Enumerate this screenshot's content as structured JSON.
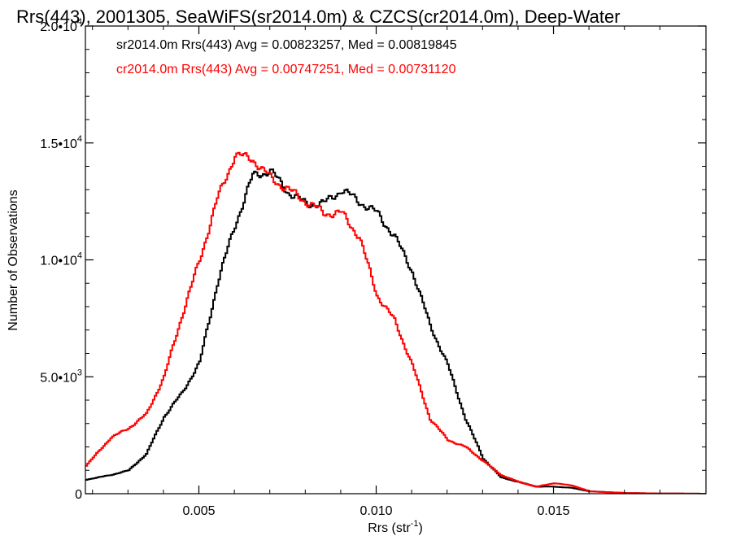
{
  "chart_data": {
    "type": "line",
    "step": true,
    "title": "Rrs(443), 2001305, SeaWiFS(sr2014.0m) & CZCS(cr2014.0m), Deep-Water",
    "xlabel": "Rrs (str",
    "xlabel_sup": "-1",
    "xlabel_end": ")",
    "ylabel": "Number of Observations",
    "xlim": [
      0.0018,
      0.0193
    ],
    "ylim": [
      0,
      20000
    ],
    "x_ticks": [
      {
        "value": 0.005,
        "label": "0.005"
      },
      {
        "value": 0.01,
        "label": "0.010"
      },
      {
        "value": 0.015,
        "label": "0.015"
      }
    ],
    "y_ticks": [
      {
        "value": 0,
        "mant": "0",
        "exp": ""
      },
      {
        "value": 5000,
        "mant": "5.0•10",
        "exp": "3"
      },
      {
        "value": 10000,
        "mant": "1.0•10",
        "exp": "4"
      },
      {
        "value": 15000,
        "mant": "1.5•10",
        "exp": "4"
      },
      {
        "value": 20000,
        "mant": "2.0•10",
        "exp": "4"
      }
    ],
    "grid": false,
    "legend_position": "top-left",
    "series": [
      {
        "name": "sr2014.0m Rrs(443) Avg = 0.00823257, Med = 0.00819845",
        "color": "#000000",
        "points": [
          [
            0.0018,
            600
          ],
          [
            0.0025,
            800
          ],
          [
            0.003,
            1000
          ],
          [
            0.0035,
            1700
          ],
          [
            0.004,
            3300
          ],
          [
            0.0045,
            4300
          ],
          [
            0.005,
            5600
          ],
          [
            0.0055,
            9000
          ],
          [
            0.006,
            11500
          ],
          [
            0.0065,
            13600
          ],
          [
            0.007,
            13800
          ],
          [
            0.0075,
            12900
          ],
          [
            0.008,
            12400
          ],
          [
            0.0085,
            12400
          ],
          [
            0.009,
            13000
          ],
          [
            0.0095,
            12500
          ],
          [
            0.01,
            12000
          ],
          [
            0.0105,
            11000
          ],
          [
            0.011,
            9500
          ],
          [
            0.0115,
            7200
          ],
          [
            0.012,
            5500
          ],
          [
            0.0125,
            3200
          ],
          [
            0.013,
            1500
          ],
          [
            0.0135,
            700
          ],
          [
            0.014,
            500
          ],
          [
            0.0145,
            300
          ],
          [
            0.015,
            300
          ],
          [
            0.0155,
            250
          ],
          [
            0.016,
            100
          ],
          [
            0.017,
            30
          ],
          [
            0.018,
            10
          ],
          [
            0.0193,
            0
          ]
        ]
      },
      {
        "name": "cr2014.0m Rrs(443) Avg = 0.00747251, Med = 0.00731120",
        "color": "#ff0000",
        "points": [
          [
            0.0018,
            1200
          ],
          [
            0.0025,
            2400
          ],
          [
            0.003,
            2800
          ],
          [
            0.0035,
            3400
          ],
          [
            0.004,
            5000
          ],
          [
            0.0045,
            7600
          ],
          [
            0.005,
            10000
          ],
          [
            0.0055,
            12600
          ],
          [
            0.006,
            14500
          ],
          [
            0.0065,
            14300
          ],
          [
            0.007,
            13500
          ],
          [
            0.0075,
            13000
          ],
          [
            0.008,
            12500
          ],
          [
            0.0085,
            12000
          ],
          [
            0.009,
            12000
          ],
          [
            0.0095,
            11000
          ],
          [
            0.01,
            8500
          ],
          [
            0.0105,
            7400
          ],
          [
            0.011,
            5500
          ],
          [
            0.0115,
            3200
          ],
          [
            0.012,
            2300
          ],
          [
            0.0125,
            2000
          ],
          [
            0.013,
            1400
          ],
          [
            0.0135,
            800
          ],
          [
            0.014,
            500
          ],
          [
            0.0145,
            300
          ],
          [
            0.015,
            450
          ],
          [
            0.0155,
            350
          ],
          [
            0.016,
            100
          ],
          [
            0.017,
            30
          ],
          [
            0.018,
            10
          ],
          [
            0.0193,
            0
          ]
        ]
      }
    ]
  }
}
